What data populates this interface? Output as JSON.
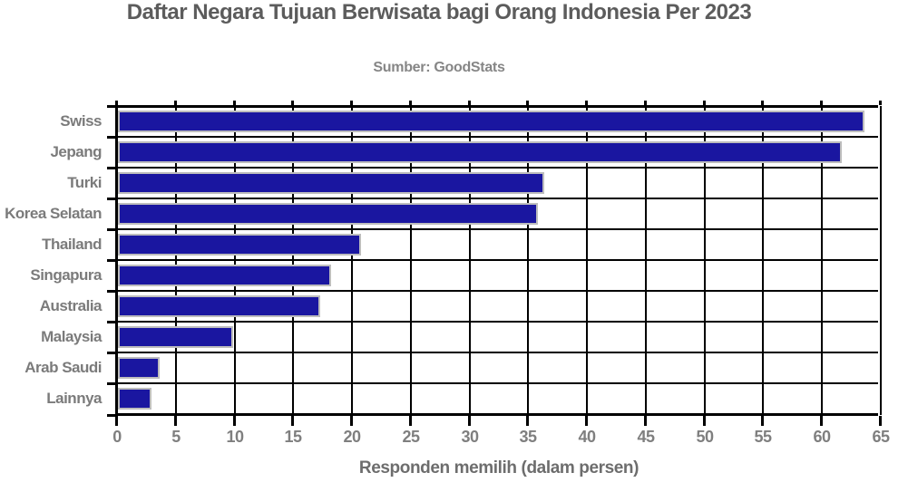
{
  "chart_data": {
    "type": "bar",
    "orientation": "horizontal",
    "title": "Daftar Negara Tujuan Berwisata bagi Orang Indonesia Per 2023",
    "subtitle": "Sumber: GoodStats",
    "xlabel": "Responden memilih (dalam persen)",
    "ylabel": "",
    "categories": [
      "Swiss",
      "Jepang",
      "Turki",
      "Korea Selatan",
      "Thailand",
      "Singapura",
      "Australia",
      "Malaysia",
      "Arab Saudi",
      "Lainnya"
    ],
    "values": [
      63.6,
      61.7,
      36.4,
      35.8,
      20.8,
      18.2,
      17.3,
      9.9,
      3.6,
      2.9
    ],
    "xlim": [
      0,
      65
    ],
    "xticks": [
      0,
      5,
      10,
      15,
      20,
      25,
      30,
      35,
      40,
      45,
      50,
      55,
      60,
      65
    ],
    "grid": true,
    "legend": false
  },
  "colors": {
    "bar_fill": "#1a16a0",
    "bar_border": "#bdbdbd",
    "grid_line": "#000000",
    "title_text": "#5c5c5c",
    "subtitle_text": "#868686",
    "tick_label_text": "#7f7f7f",
    "axis_label_text": "#6d6d6d"
  }
}
